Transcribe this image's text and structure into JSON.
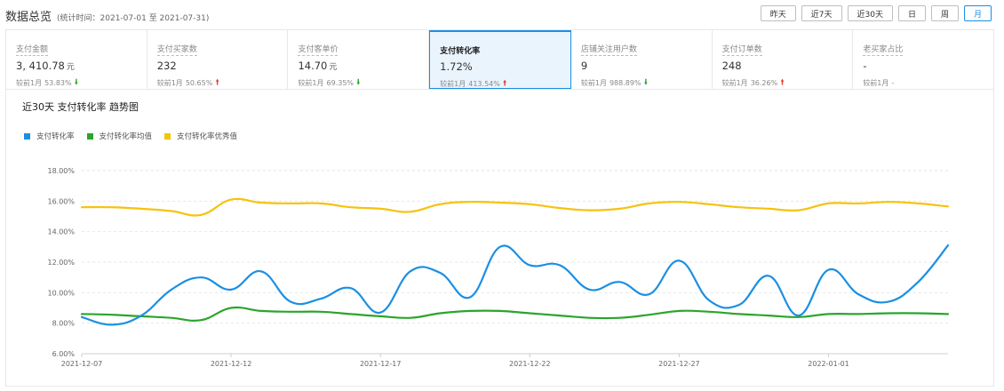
{
  "header": {
    "title": "数据总览",
    "range_text": "(统计时间：2021-07-01 至 2021-07-31)"
  },
  "range_buttons": [
    {
      "label": "昨天",
      "active": false
    },
    {
      "label": "近7天",
      "active": false
    },
    {
      "label": "近30天",
      "active": false
    },
    {
      "label": "日",
      "active": false
    },
    {
      "label": "周",
      "active": false
    },
    {
      "label": "月",
      "active": true
    }
  ],
  "metrics": [
    {
      "label": "支付金额",
      "value": "3, 410.78",
      "unit": "元",
      "compare": "较前1月",
      "pct": "53.83%",
      "direction": "down",
      "active": false
    },
    {
      "label": "支付买家数",
      "value": "232",
      "unit": "",
      "compare": "较前1月",
      "pct": "50.65%",
      "direction": "up",
      "active": false
    },
    {
      "label": "支付客单价",
      "value": "14.70",
      "unit": "元",
      "compare": "较前1月",
      "pct": "69.35%",
      "direction": "down",
      "active": false
    },
    {
      "label": "支付转化率",
      "value": "1.72%",
      "unit": "",
      "compare": "较前1月",
      "pct": "413.54%",
      "direction": "up",
      "active": true
    },
    {
      "label": "店铺关注用户数",
      "value": "9",
      "unit": "",
      "compare": "较前1月",
      "pct": "988.89%",
      "direction": "down",
      "active": false
    },
    {
      "label": "支付订单数",
      "value": "248",
      "unit": "",
      "compare": "较前1月",
      "pct": "36.26%",
      "direction": "up",
      "active": false
    },
    {
      "label": "老买家占比",
      "value": "-",
      "unit": "",
      "compare": "较前1月",
      "pct": "-",
      "direction": "none",
      "active": false
    }
  ],
  "chart_panel": {
    "title": "近30天 支付转化率 趋势图"
  },
  "chart_data": {
    "type": "line",
    "x": [
      "2021-12-07",
      "2021-12-08",
      "2021-12-09",
      "2021-12-10",
      "2021-12-11",
      "2021-12-12",
      "2021-12-13",
      "2021-12-14",
      "2021-12-15",
      "2021-12-16",
      "2021-12-17",
      "2021-12-18",
      "2021-12-19",
      "2021-12-20",
      "2021-12-21",
      "2021-12-22",
      "2021-12-23",
      "2021-12-24",
      "2021-12-25",
      "2021-12-26",
      "2021-12-27",
      "2021-12-28",
      "2021-12-29",
      "2021-12-30",
      "2021-12-31",
      "2022-01-01",
      "2022-01-02",
      "2022-01-03",
      "2022-01-04",
      "2022-01-05"
    ],
    "x_tick_labels": [
      "2021-12-07",
      "2021-12-12",
      "2021-12-17",
      "2021-12-22",
      "2021-12-27",
      "2022-01-01"
    ],
    "y_tick_labels": [
      "6.00%",
      "8.00%",
      "10.00%",
      "12.00%",
      "14.00%",
      "16.00%",
      "18.00%"
    ],
    "ylim": [
      6,
      18
    ],
    "grid": true,
    "legend_position": "top-left",
    "series": [
      {
        "name": "支付转化率",
        "color": "#1a8fe3",
        "values": [
          8.4,
          7.9,
          8.5,
          10.2,
          11.0,
          10.2,
          11.4,
          9.4,
          9.6,
          10.3,
          8.7,
          11.4,
          11.3,
          9.7,
          13.0,
          11.8,
          11.8,
          10.2,
          10.7,
          9.9,
          12.1,
          9.5,
          9.2,
          11.1,
          8.5,
          11.5,
          9.9,
          9.4,
          10.7,
          13.1
        ]
      },
      {
        "name": "支付转化率均值",
        "color": "#2ba52b",
        "values": [
          8.6,
          8.55,
          8.45,
          8.35,
          8.2,
          9.0,
          8.8,
          8.75,
          8.75,
          8.6,
          8.45,
          8.35,
          8.65,
          8.8,
          8.8,
          8.65,
          8.5,
          8.35,
          8.35,
          8.55,
          8.8,
          8.75,
          8.6,
          8.5,
          8.4,
          8.6,
          8.6,
          8.65,
          8.65,
          8.6
        ]
      },
      {
        "name": "支付转化率优秀值",
        "color": "#f6c20e",
        "values": [
          15.6,
          15.6,
          15.5,
          15.35,
          15.1,
          16.1,
          15.9,
          15.85,
          15.85,
          15.6,
          15.5,
          15.3,
          15.8,
          15.95,
          15.9,
          15.8,
          15.55,
          15.4,
          15.5,
          15.85,
          15.95,
          15.8,
          15.6,
          15.5,
          15.4,
          15.85,
          15.85,
          15.95,
          15.85,
          15.65
        ]
      }
    ]
  }
}
